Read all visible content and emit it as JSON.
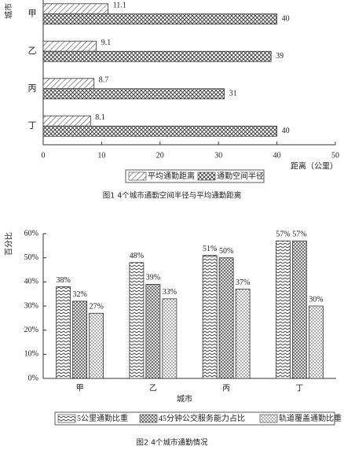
{
  "chart_data": [
    {
      "type": "hbar",
      "caption": "图1   4个城市通勤空间半径与平均通勤距离",
      "xlabel": "距离（公里）",
      "ylabel": "城市",
      "categories": [
        "甲",
        "乙",
        "丙",
        "丁"
      ],
      "series": [
        {
          "name": "平均通勤距离",
          "color": "#333333",
          "values": [
            11.1,
            9.1,
            8.7,
            8.1
          ]
        },
        {
          "name": "通勤空间半径",
          "color": "#333333",
          "values": [
            40,
            39,
            31,
            40
          ]
        }
      ],
      "xlim": [
        0,
        50
      ],
      "xticks": [
        0,
        10,
        20,
        30,
        40,
        50
      ],
      "legend": "bottom"
    },
    {
      "type": "bar",
      "caption": "图2   4个城市通勤情况",
      "xlabel": "城市",
      "ylabel": "百分比",
      "categories": [
        "甲",
        "乙",
        "丙",
        "丁"
      ],
      "series": [
        {
          "name": "5公里通勤比重",
          "color": "#333333",
          "values": [
            38,
            48,
            51,
            57
          ],
          "value_labels": [
            "38%",
            "48%",
            "51%",
            "57%"
          ]
        },
        {
          "name": "45分钟公交服务能力占比",
          "color": "#333333",
          "values": [
            32,
            39,
            50,
            57
          ],
          "value_labels": [
            "32%",
            "39%",
            "50%",
            "57%"
          ]
        },
        {
          "name": "轨道覆盖通勤比重",
          "color": "#333333",
          "values": [
            27,
            33,
            37,
            30
          ],
          "value_labels": [
            "27%",
            "33%",
            "37%",
            "30%"
          ]
        }
      ],
      "ylim": [
        0,
        60
      ],
      "yticks": [
        {
          "value": 0,
          "label": "0%"
        },
        {
          "value": 10,
          "label": "10%"
        },
        {
          "value": 20,
          "label": "20%"
        },
        {
          "value": 30,
          "label": "30%"
        },
        {
          "value": 40,
          "label": "40%"
        },
        {
          "value": 50,
          "label": "50%"
        },
        {
          "value": 60,
          "label": "60%"
        }
      ],
      "legend": "bottom"
    }
  ]
}
